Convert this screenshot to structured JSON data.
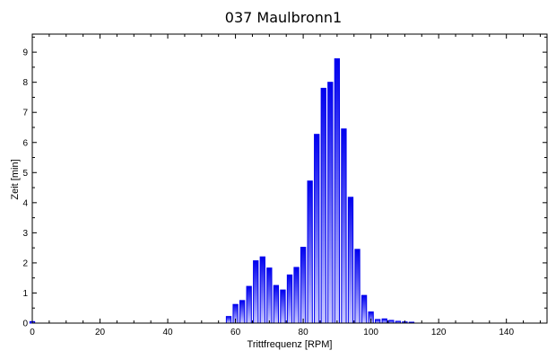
{
  "chart_data": {
    "type": "bar",
    "title": "037 Maulbronn1",
    "xlabel": "Trittfrequenz [RPM]",
    "ylabel": "Zeit [min]",
    "xlim": [
      0,
      152
    ],
    "ylim": [
      0,
      9.6
    ],
    "xticks": [
      0,
      20,
      40,
      60,
      80,
      100,
      120,
      140
    ],
    "yticks": [
      0,
      1,
      2,
      3,
      4,
      5,
      6,
      7,
      8,
      9
    ],
    "grid": false,
    "bar_color": "#0000ee",
    "bar_width": 1.4,
    "x": [
      0,
      58,
      60,
      62,
      64,
      66,
      68,
      70,
      72,
      74,
      76,
      78,
      80,
      82,
      84,
      86,
      88,
      90,
      92,
      94,
      96,
      98,
      100,
      102,
      104,
      106,
      108,
      110,
      112
    ],
    "values": [
      0.05,
      0.22,
      0.62,
      0.75,
      1.22,
      2.07,
      2.2,
      1.83,
      1.25,
      1.1,
      1.6,
      1.85,
      2.52,
      4.72,
      6.27,
      7.8,
      8.0,
      8.78,
      6.45,
      4.18,
      2.45,
      0.92,
      0.37,
      0.12,
      0.14,
      0.09,
      0.06,
      0.04,
      0.03
    ]
  }
}
